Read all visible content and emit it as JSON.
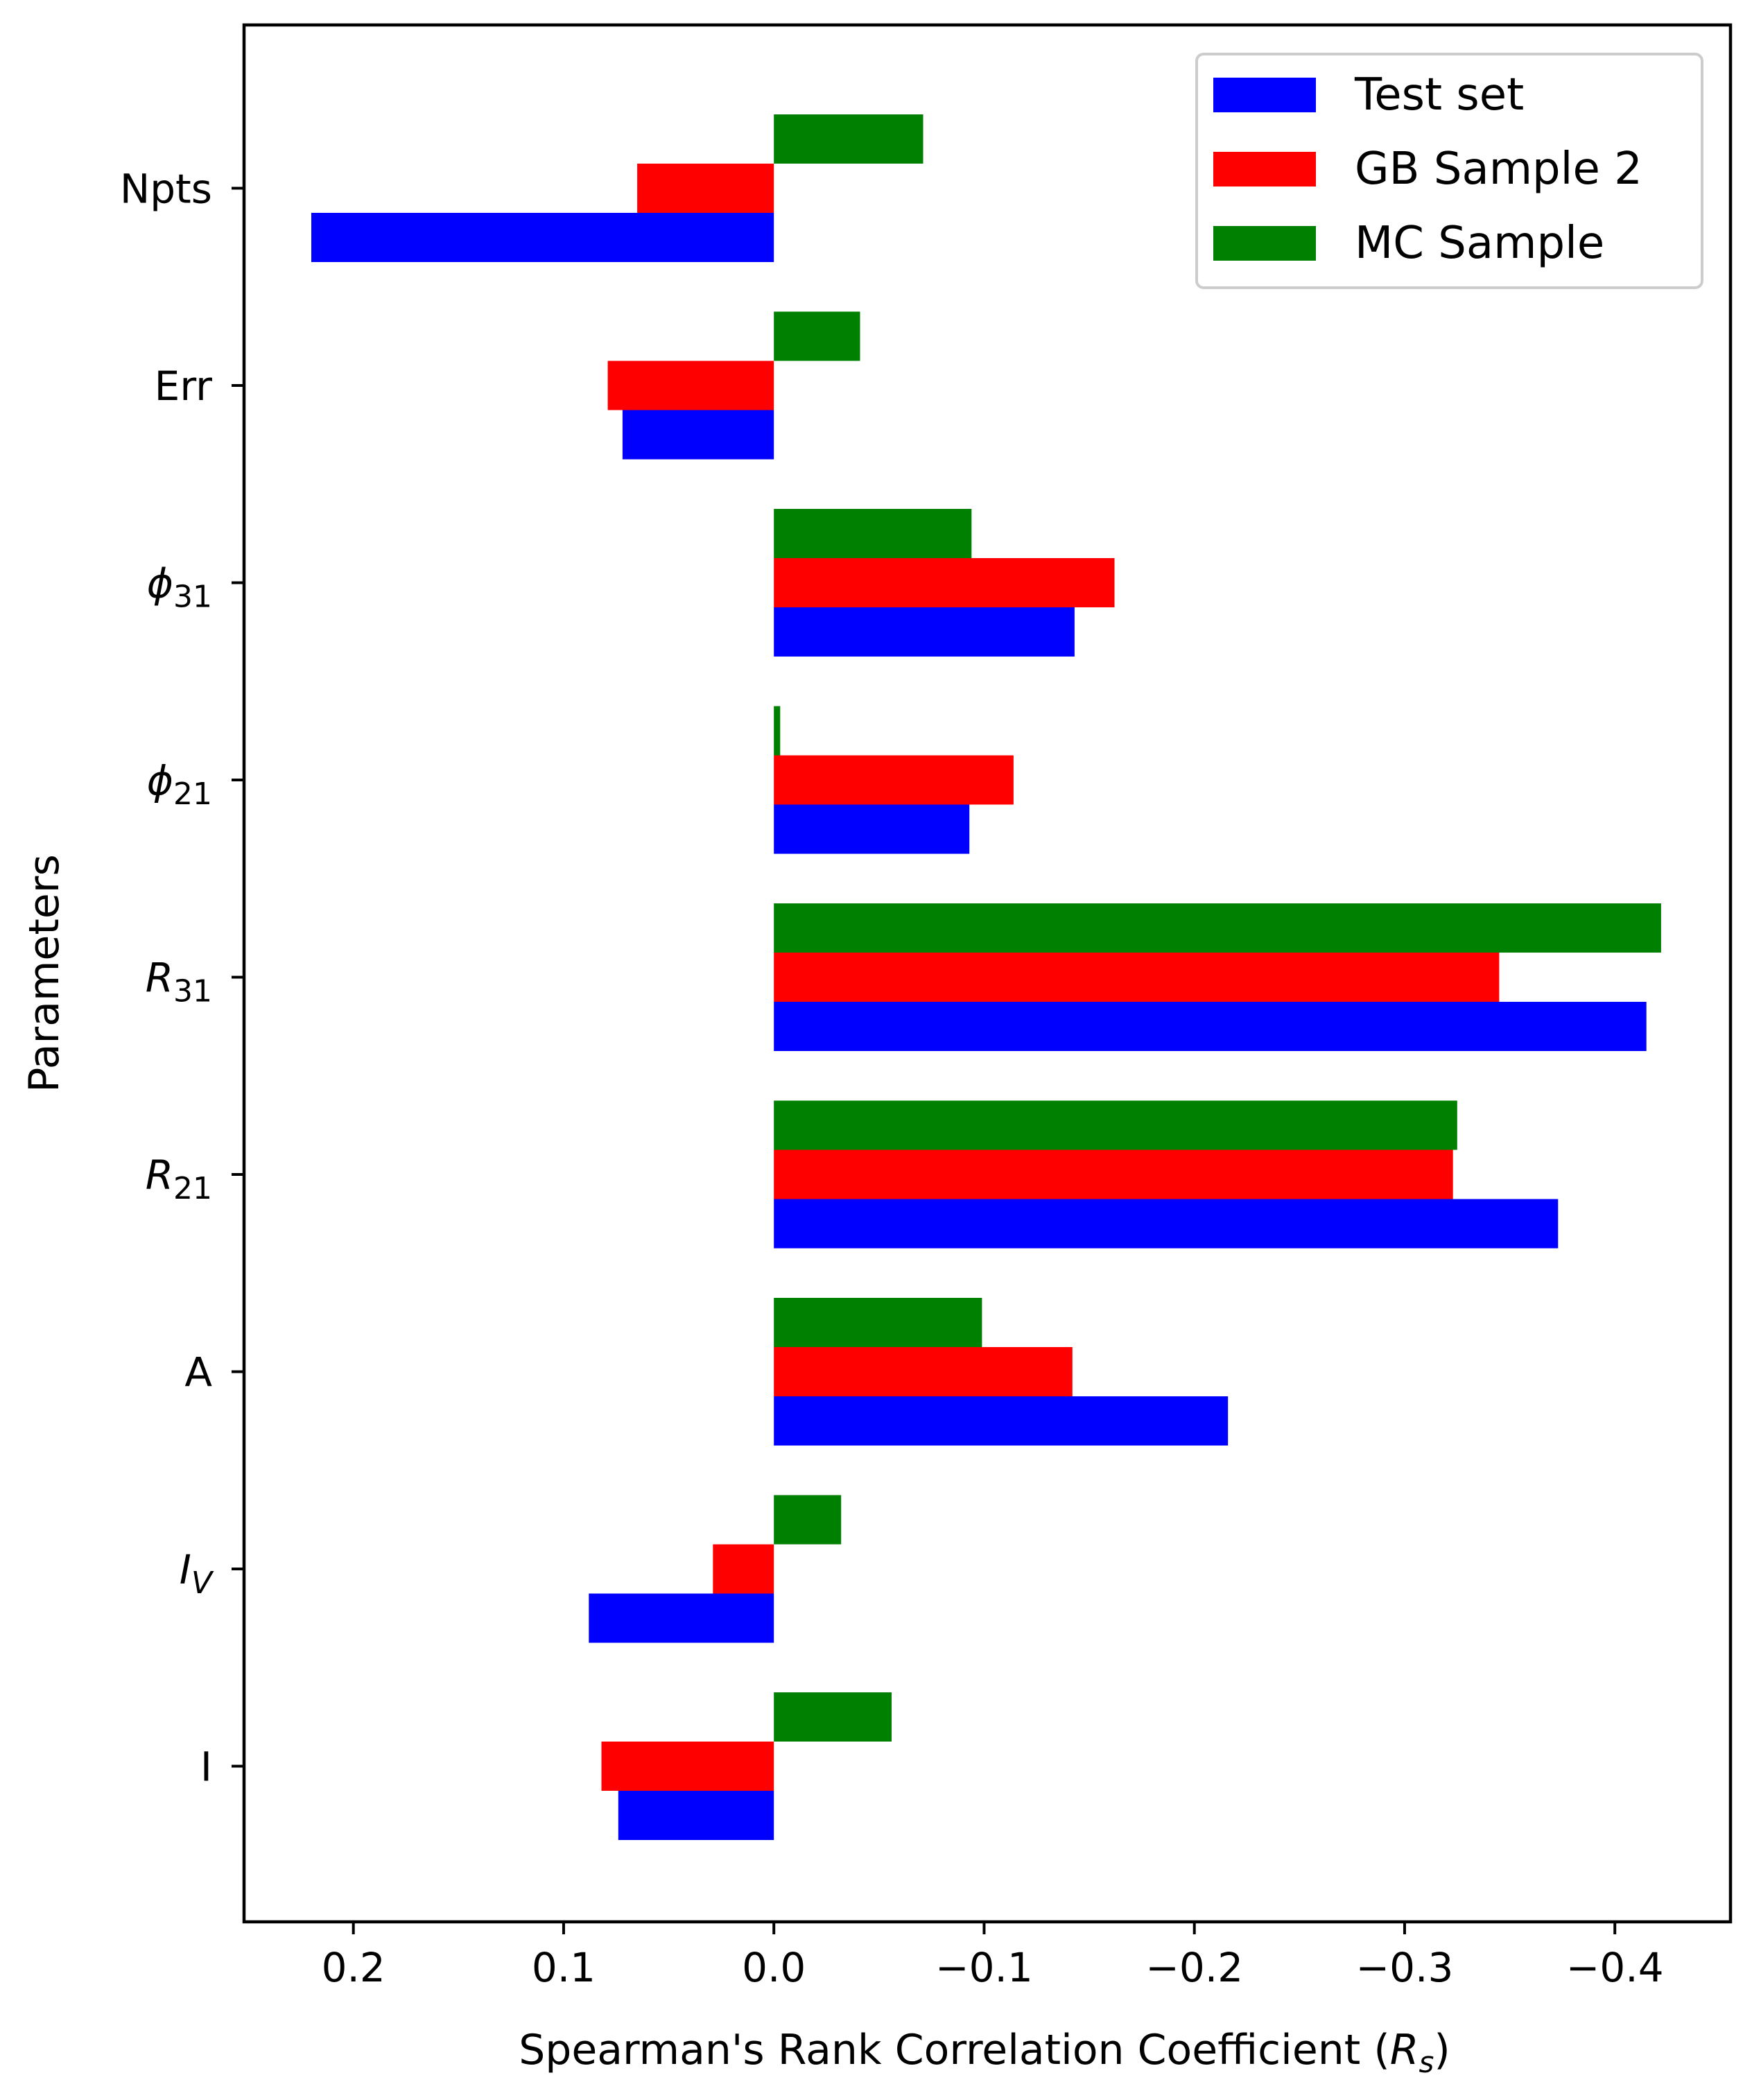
{
  "chart_data": {
    "type": "bar",
    "orientation": "horizontal",
    "title": "",
    "xlabel": "Spearman's Rank Correlation Coefficient",
    "xlabel_symbol": "R",
    "xlabel_symbol_sub": "s",
    "ylabel": "Parameters",
    "x_axis_inverted": true,
    "xlim": [
      0.252,
      -0.455
    ],
    "x_ticks": [
      {
        "value": 0.2,
        "label": "0.2"
      },
      {
        "value": 0.1,
        "label": "0.1"
      },
      {
        "value": 0.0,
        "label": "0.0"
      },
      {
        "value": -0.1,
        "label": "−0.1"
      },
      {
        "value": -0.2,
        "label": "−0.2"
      },
      {
        "value": -0.3,
        "label": "−0.3"
      },
      {
        "value": -0.4,
        "label": "−0.4"
      }
    ],
    "categories": [
      {
        "base": "Npts",
        "sub": "",
        "italic": false
      },
      {
        "base": "Err",
        "sub": "",
        "italic": false
      },
      {
        "base": "ϕ",
        "sub": "31",
        "italic": true
      },
      {
        "base": "ϕ",
        "sub": "21",
        "italic": true
      },
      {
        "base": "R",
        "sub": "31",
        "italic": true
      },
      {
        "base": "R",
        "sub": "21",
        "italic": true
      },
      {
        "base": "A",
        "sub": "",
        "italic": false
      },
      {
        "base": "I",
        "sub": "V",
        "italic": true
      },
      {
        "base": "I",
        "sub": "",
        "italic": false
      }
    ],
    "series": [
      {
        "name": "Test set",
        "color": "#0000ff",
        "values": [
          0.22,
          0.072,
          -0.143,
          -0.093,
          -0.415,
          -0.373,
          -0.216,
          0.088,
          0.074
        ]
      },
      {
        "name": "GB Sample 2",
        "color": "#ff0000",
        "values": [
          0.065,
          0.079,
          -0.162,
          -0.114,
          -0.345,
          -0.323,
          -0.142,
          0.029,
          0.082
        ]
      },
      {
        "name": "MC Sample",
        "color": "#008000",
        "values": [
          -0.071,
          -0.041,
          -0.094,
          -0.003,
          -0.422,
          -0.325,
          -0.099,
          -0.032,
          -0.056
        ]
      }
    ],
    "legend_position": "top-right",
    "grid": false
  }
}
